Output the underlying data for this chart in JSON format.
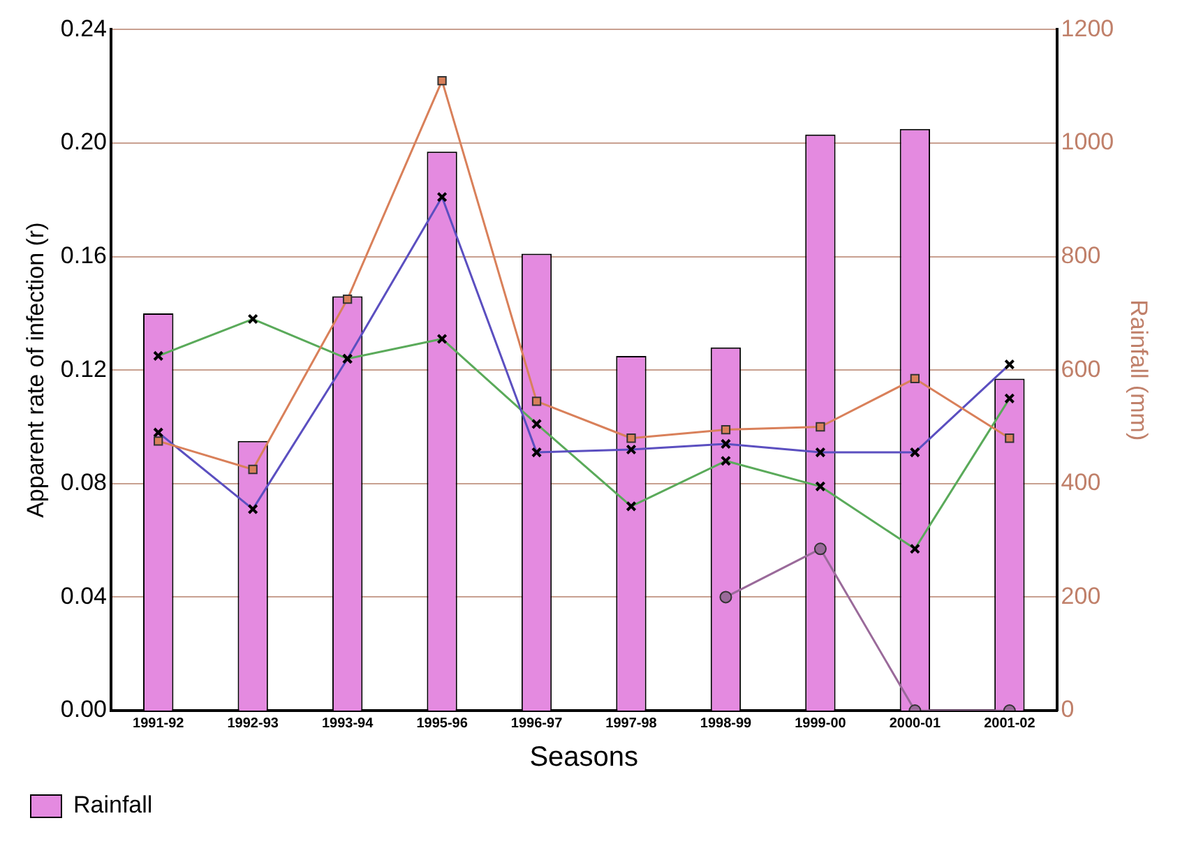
{
  "chart_data": {
    "type": "line",
    "xlabel": "Seasons",
    "ylabel": "Apparent rate of infection (r)",
    "y2label": "Rainfall (mm)",
    "categories": [
      "1991-92",
      "1992-93",
      "1993-94",
      "1995-96",
      "1996-97",
      "1997-98",
      "1998-99",
      "1999-00",
      "2000-01",
      "2001-02"
    ],
    "series": [
      {
        "type": "bar",
        "name": "Rainfall",
        "color": "#e48ae0",
        "axis": "y2",
        "values": [
          700,
          475,
          730,
          985,
          805,
          625,
          640,
          1015,
          1025,
          585
        ]
      },
      {
        "color": "#d9805a",
        "marker": "square",
        "values": [
          0.095,
          0.085,
          0.145,
          0.222,
          0.109,
          0.096,
          0.099,
          0.1,
          0.117,
          0.096
        ]
      },
      {
        "color": "#5b4fc0",
        "marker": "cross",
        "values": [
          0.098,
          0.071,
          0.124,
          0.181,
          0.091,
          0.092,
          0.094,
          0.091,
          0.091,
          0.122
        ]
      },
      {
        "color": "#5aaa5a",
        "marker": "cross",
        "values": [
          0.125,
          0.138,
          0.124,
          0.131,
          0.101,
          0.072,
          0.088,
          0.079,
          0.057,
          0.11
        ]
      },
      {
        "color": "#9a6a9a",
        "marker": "circle",
        "values": [
          null,
          null,
          null,
          null,
          null,
          null,
          0.04,
          0.057,
          0.0,
          0.0
        ]
      }
    ],
    "ylim": [
      0,
      0.24
    ],
    "yticks": [
      {
        "value": 0,
        "label": "0.00"
      },
      {
        "value": 0.04,
        "label": "0.04"
      },
      {
        "value": 0.08,
        "label": "0.08"
      },
      {
        "value": 0.12,
        "label": "0.12"
      },
      {
        "value": 0.16,
        "label": "0.16"
      },
      {
        "value": 0.2,
        "label": "0.20"
      },
      {
        "value": 0.24,
        "label": "0.24"
      }
    ],
    "y2lim": [
      0,
      1200
    ],
    "y2ticks": [
      0,
      200,
      400,
      600,
      800,
      1000,
      1200
    ],
    "grid": "y",
    "legend": "bottom"
  }
}
